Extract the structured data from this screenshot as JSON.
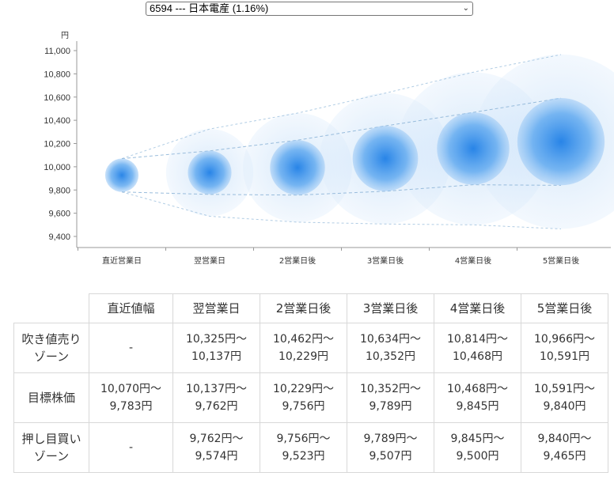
{
  "selector": {
    "value": "6594 --- 日本電産 (1.16%)"
  },
  "chart_data": {
    "type": "scatter",
    "ylabel": "円",
    "ylim": [
      9400,
      11000
    ],
    "yticks": [
      "11,000",
      "10,800",
      "10,600",
      "10,400",
      "10,200",
      "10,000",
      "9,800",
      "9,600",
      "9,400"
    ],
    "categories": [
      "直近営業日",
      "翌営業日",
      "2営業日後",
      "3営業日後",
      "4営業日後",
      "5営業日後"
    ],
    "center": [
      9927,
      9950,
      9993,
      10071,
      10157,
      10216
    ],
    "inner_band": {
      "upper": [
        10070,
        10137,
        10229,
        10352,
        10468,
        10591
      ],
      "lower": [
        9783,
        9762,
        9756,
        9789,
        9845,
        9840
      ]
    },
    "outer_band": {
      "upper": [
        10070,
        10325,
        10462,
        10634,
        10814,
        10966
      ],
      "lower": [
        9783,
        9574,
        9523,
        9507,
        9500,
        9465
      ]
    },
    "colors": {
      "bubble": "#2f8be6",
      "line": "#8fb6d8",
      "axis": "#999999"
    }
  },
  "table": {
    "headers": [
      "直近値幅",
      "翌営業日",
      "2営業日後",
      "3営業日後",
      "4営業日後",
      "5営業日後"
    ],
    "rows": [
      {
        "label": [
          "吹き値売り",
          "ゾーン"
        ],
        "cells": [
          [
            "-"
          ],
          [
            "10,325円〜",
            "10,137円"
          ],
          [
            "10,462円〜",
            "10,229円"
          ],
          [
            "10,634円〜",
            "10,352円"
          ],
          [
            "10,814円〜",
            "10,468円"
          ],
          [
            "10,966円〜",
            "10,591円"
          ]
        ]
      },
      {
        "label": [
          "目標株価"
        ],
        "cells": [
          [
            "10,070円〜",
            "9,783円"
          ],
          [
            "10,137円〜",
            "9,762円"
          ],
          [
            "10,229円〜",
            "9,756円"
          ],
          [
            "10,352円〜",
            "9,789円"
          ],
          [
            "10,468円〜",
            "9,845円"
          ],
          [
            "10,591円〜",
            "9,840円"
          ]
        ]
      },
      {
        "label": [
          "押し目買い",
          "ゾーン"
        ],
        "cells": [
          [
            "-"
          ],
          [
            "9,762円〜",
            "9,574円"
          ],
          [
            "9,756円〜",
            "9,523円"
          ],
          [
            "9,789円〜",
            "9,507円"
          ],
          [
            "9,845円〜",
            "9,500円"
          ],
          [
            "9,840円〜",
            "9,465円"
          ]
        ]
      }
    ]
  }
}
